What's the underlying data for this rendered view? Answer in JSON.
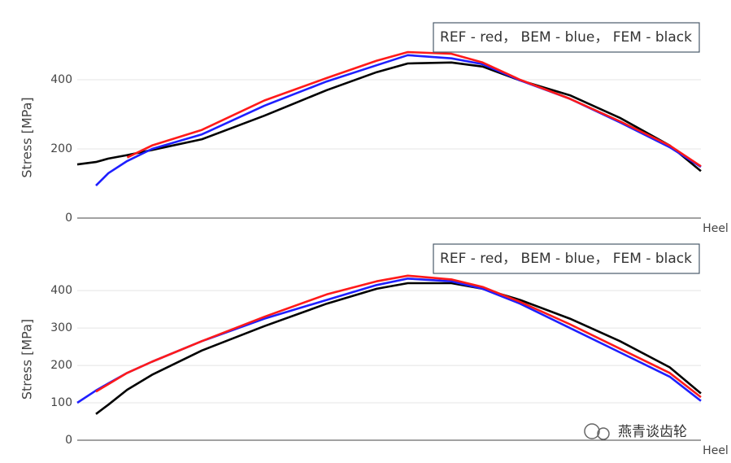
{
  "chart_data": [
    {
      "type": "line",
      "legend_text": "REF - red， BEM - blue， FEM - black",
      "xlabel": "Heel",
      "ylabel": "Stress [MPa]",
      "x": [
        0,
        3,
        5,
        8,
        12,
        20,
        30,
        40,
        48,
        53,
        60,
        65,
        71,
        79,
        87,
        95,
        100
      ],
      "xlim": [
        0,
        100
      ],
      "ylim": [
        0,
        560
      ],
      "yticks": [
        0,
        200,
        400
      ],
      "grid": true,
      "series": [
        {
          "name": "FEM",
          "color": "#000000",
          "values": [
            155,
            162,
            172,
            182,
            197,
            228,
            296,
            370,
            422,
            447,
            450,
            438,
            398,
            355,
            290,
            210,
            136
          ]
        },
        {
          "name": "BEM",
          "color": "#1f1fff",
          "values": [
            null,
            94,
            130,
            165,
            200,
            242,
            325,
            395,
            442,
            471,
            462,
            445,
            398,
            345,
            277,
            205,
            148
          ]
        },
        {
          "name": "REF",
          "color": "#ff1a1a",
          "values": [
            null,
            null,
            null,
            175,
            210,
            255,
            340,
            405,
            455,
            480,
            475,
            450,
            400,
            345,
            280,
            210,
            150
          ]
        }
      ]
    },
    {
      "type": "line",
      "legend_text": "REF - red， BEM - blue， FEM - black",
      "xlabel": "Heel",
      "ylabel": "Stress [MPa]",
      "x": [
        0,
        3,
        5,
        8,
        12,
        20,
        30,
        40,
        48,
        53,
        60,
        65,
        71,
        79,
        87,
        95,
        100
      ],
      "xlim": [
        0,
        100
      ],
      "ylim": [
        0,
        520
      ],
      "yticks": [
        0,
        100,
        200,
        300,
        400
      ],
      "grid": true,
      "series": [
        {
          "name": "FEM",
          "color": "#000000",
          "values": [
            null,
            70,
            95,
            135,
            175,
            240,
            305,
            365,
            405,
            420,
            420,
            405,
            375,
            325,
            265,
            195,
            125
          ]
        },
        {
          "name": "BEM",
          "color": "#1f1fff",
          "values": [
            100,
            133,
            152,
            180,
            210,
            265,
            325,
            375,
            415,
            432,
            425,
            405,
            365,
            300,
            235,
            170,
            105
          ]
        },
        {
          "name": "REF",
          "color": "#ff1a1a",
          "values": [
            null,
            130,
            150,
            180,
            210,
            265,
            330,
            390,
            425,
            440,
            430,
            410,
            370,
            310,
            245,
            180,
            115
          ]
        }
      ]
    }
  ],
  "watermark": "燕青谈齿轮"
}
